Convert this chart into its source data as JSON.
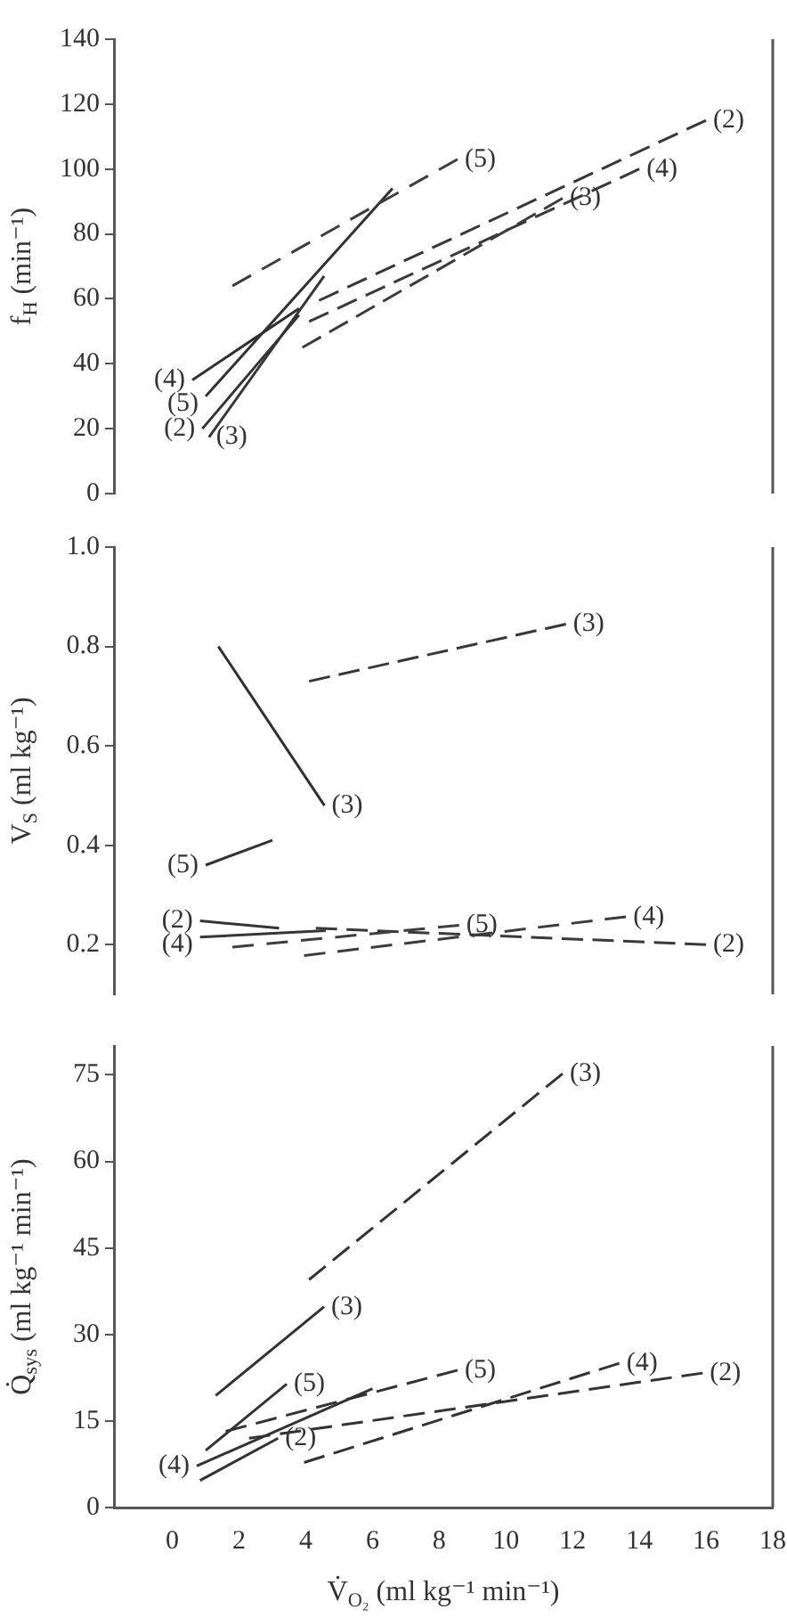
{
  "chart_data": [
    {
      "type": "line",
      "ylabel": "f$_{H}$ (min⁻¹)",
      "xlim": [
        -1.75,
        18
      ],
      "ylim": [
        0,
        140
      ],
      "yticks": [
        0,
        20,
        40,
        60,
        80,
        100,
        120,
        140
      ],
      "tick_labels": "y",
      "marker": "none",
      "series": [
        {
          "color": "#303030",
          "line_style": "solid",
          "x": [
            0.6,
            3.8
          ],
          "values": [
            35,
            57
          ]
        },
        {
          "color": "#323232",
          "line_style": "solid",
          "x": [
            1.0,
            6.6
          ],
          "values": [
            30,
            94
          ]
        },
        {
          "color": "#343434",
          "line_style": "solid",
          "x": [
            0.9,
            3.8
          ],
          "values": [
            20,
            55
          ]
        },
        {
          "color": "#363636",
          "line_style": "solid",
          "x": [
            1.1,
            4.55
          ],
          "values": [
            17.4,
            67
          ]
        },
        {
          "color": "#383838",
          "line_style": "dashed",
          "x": [
            4.4,
            16.0
          ],
          "values": [
            59.5,
            115
          ]
        },
        {
          "color": "#3a3a3a",
          "line_style": "dashed",
          "x": [
            4.1,
            14.0
          ],
          "values": [
            53,
            100
          ]
        },
        {
          "color": "#3c3c3c",
          "line_style": "dashed",
          "x": [
            3.9,
            11.7
          ],
          "values": [
            45,
            91
          ]
        },
        {
          "color": "#3e3e3e",
          "line_style": "dashed",
          "x": [
            1.8,
            8.55
          ],
          "values": [
            64,
            103
          ]
        }
      ],
      "annotations": [
        {
          "text": "(2)",
          "x": 16.0,
          "y": 115
        },
        {
          "text": "(5)",
          "x": 8.55,
          "y": 103
        },
        {
          "text": "(4)",
          "x": 14.0,
          "y": 100
        },
        {
          "text": "(3)",
          "x": 11.7,
          "y": 91
        },
        {
          "text": "(4)",
          "x": 0.6,
          "y": 35
        },
        {
          "text": "(5)",
          "x": 1.0,
          "y": 30
        },
        {
          "text": "(2)",
          "x": 0.9,
          "y": 20
        },
        {
          "text": "(3)",
          "x": 1.1,
          "y": 17.4
        }
      ]
    },
    {
      "type": "line",
      "ylabel": "V$_{S}$ (ml kg⁻¹)",
      "xlim": [
        -1.75,
        18
      ],
      "ylim": [
        0.1,
        1.0
      ],
      "yticks": [
        0.2,
        0.4,
        0.6,
        0.8,
        {
          "value": 1,
          "label": "1.0"
        }
      ],
      "tick_labels": "y",
      "marker": "none",
      "series": [
        {
          "color": "#303030",
          "line_style": "solid",
          "x": [
            1.38,
            4.56
          ],
          "values": [
            0.8,
            0.48
          ]
        },
        {
          "color": "#323232",
          "line_style": "solid",
          "x": [
            1.0,
            3.0
          ],
          "values": [
            0.36,
            0.41
          ]
        },
        {
          "color": "#343434",
          "line_style": "solid",
          "x": [
            0.83,
            3.2
          ],
          "values": [
            0.248,
            0.233
          ]
        },
        {
          "color": "#363636",
          "line_style": "solid",
          "x": [
            0.83,
            4.6
          ],
          "values": [
            0.215,
            0.228
          ]
        },
        {
          "color": "#383838",
          "line_style": "dashed",
          "x": [
            4.1,
            11.8
          ],
          "values": [
            0.73,
            0.845
          ]
        },
        {
          "color": "#3a3a3a",
          "line_style": "dashed",
          "x": [
            4.3,
            16.0
          ],
          "values": [
            0.233,
            0.2
          ]
        },
        {
          "color": "#3c3c3c",
          "line_style": "dashed",
          "x": [
            3.95,
            13.6
          ],
          "values": [
            0.178,
            0.256
          ]
        },
        {
          "color": "#3e3e3e",
          "line_style": "dashed",
          "x": [
            1.8,
            8.6
          ],
          "values": [
            0.195,
            0.239
          ]
        }
      ],
      "annotations": [
        {
          "text": "(3)",
          "x": 11.8,
          "y": 0.845
        },
        {
          "text": "(3)",
          "x": 4.56,
          "y": 0.48
        },
        {
          "text": "(5)",
          "x": 1.0,
          "y": 0.36
        },
        {
          "text": "(2)",
          "x": 0.83,
          "y": 0.248
        },
        {
          "text": "(4)",
          "x": 0.83,
          "y": 0.215
        },
        {
          "text": "(5)",
          "x": 8.6,
          "y": 0.239
        },
        {
          "text": "(4)",
          "x": 13.6,
          "y": 0.256
        },
        {
          "text": "(2)",
          "x": 16.0,
          "y": 0.2
        }
      ]
    },
    {
      "type": "line",
      "xlabel": "V̇$_{O₂}$ (ml kg⁻¹ min⁻¹)",
      "ylabel": "Q̇$_{sys}$ (ml kg⁻¹ min⁻¹)",
      "xlim": [
        -1.75,
        18
      ],
      "xticks": [
        0,
        2,
        4,
        6,
        8,
        10,
        12,
        14,
        16,
        18
      ],
      "ylim": [
        0,
        80
      ],
      "yticks": [
        0,
        15,
        30,
        45,
        60,
        75
      ],
      "marker": "none",
      "series": [
        {
          "color": "#333333",
          "line_style": "solid",
          "x": [
            1.3,
            4.55
          ],
          "values": [
            19.4,
            34.8
          ]
        },
        {
          "color": "#333333",
          "line_style": "solid",
          "x": [
            1.0,
            3.43
          ],
          "values": [
            9.9,
            21.4
          ]
        },
        {
          "color": "#333333",
          "line_style": "solid",
          "x": [
            0.73,
            6.0
          ],
          "values": [
            7.2,
            20.6
          ]
        },
        {
          "color": "#333333",
          "line_style": "solid",
          "x": [
            0.83,
            3.17
          ],
          "values": [
            4.7,
            12.0
          ]
        },
        {
          "color": "#333333",
          "line_style": "dashed",
          "x": [
            4.1,
            11.7
          ],
          "values": [
            39.5,
            75.2
          ]
        },
        {
          "color": "#333333",
          "line_style": "dashed",
          "x": [
            1.6,
            8.55
          ],
          "values": [
            13.2,
            23.8
          ]
        },
        {
          "color": "#333333",
          "line_style": "dashed",
          "x": [
            3.95,
            13.4
          ],
          "values": [
            7.8,
            25.0
          ]
        },
        {
          "color": "#333333",
          "line_style": "dashed",
          "x": [
            2.3,
            15.9
          ],
          "values": [
            12.0,
            23.3
          ]
        }
      ],
      "annotations": [
        {
          "text": "(3)",
          "x": 11.7,
          "y": 75.2
        },
        {
          "text": "(3)",
          "x": 4.55,
          "y": 34.8
        },
        {
          "text": "(5)",
          "x": 3.43,
          "y": 21.4
        },
        {
          "text": "(5)",
          "x": 8.55,
          "y": 23.8
        },
        {
          "text": "(4)",
          "x": 13.4,
          "y": 25.0
        },
        {
          "text": "(2)",
          "x": 15.9,
          "y": 23.3
        },
        {
          "text": "(4)",
          "x": 0.73,
          "y": 7.2
        },
        {
          "text": "(2)",
          "x": 3.17,
          "y": 12.0
        }
      ]
    }
  ]
}
